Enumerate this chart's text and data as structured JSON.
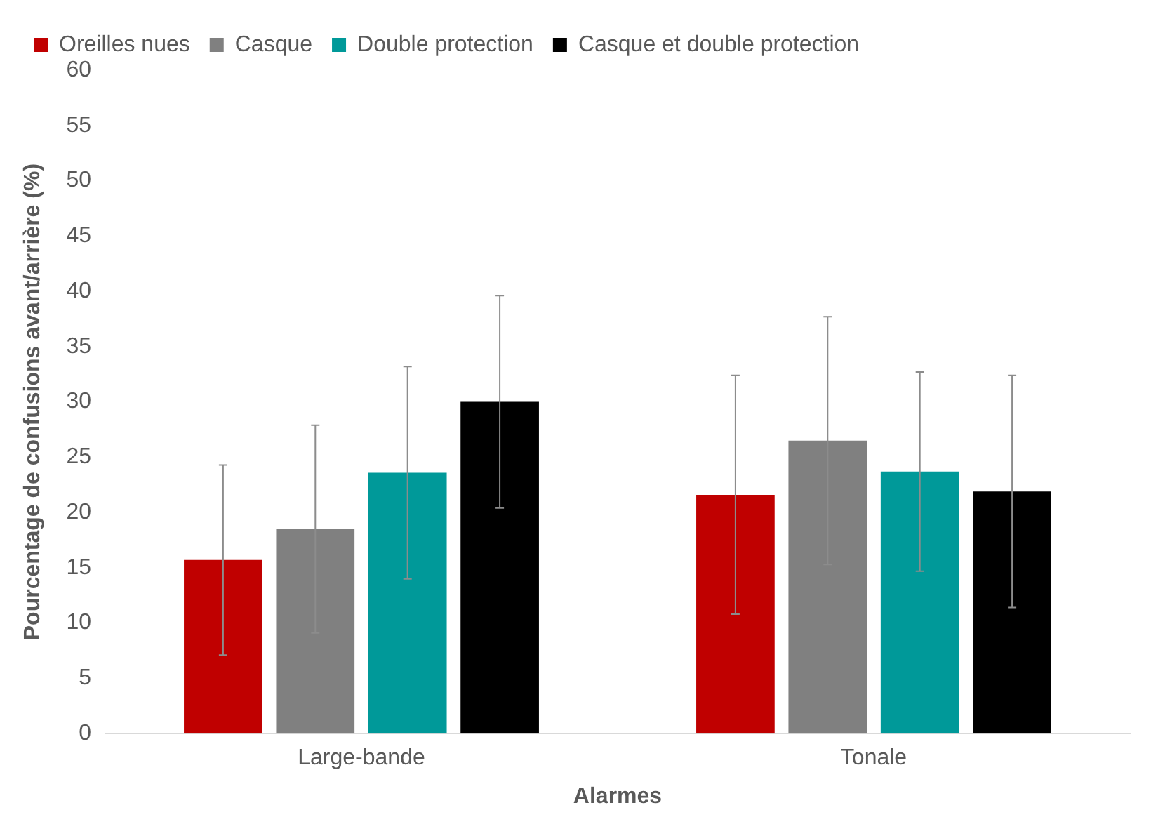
{
  "chart_data": {
    "type": "bar",
    "xlabel": "Alarmes",
    "ylabel": "Pourcentage de confusions avant/arrière (%)",
    "categories": [
      "Large-bande",
      "Tonale"
    ],
    "series": [
      {
        "name": "Oreilles nues",
        "color": "#c00000",
        "values": [
          15.7,
          21.6
        ],
        "errors": [
          8.6,
          10.8
        ]
      },
      {
        "name": "Casque",
        "color": "#808080",
        "values": [
          18.5,
          26.5
        ],
        "errors": [
          9.4,
          11.2
        ]
      },
      {
        "name": "Double protection",
        "color": "#009999",
        "values": [
          23.6,
          23.7
        ],
        "errors": [
          9.6,
          9.0
        ]
      },
      {
        "name": "Casque et double protection",
        "color": "#000000",
        "values": [
          30.0,
          21.9
        ],
        "errors": [
          9.6,
          10.5
        ]
      }
    ],
    "ylim": [
      0,
      60
    ],
    "yticks": [
      0,
      5,
      10,
      15,
      20,
      25,
      30,
      35,
      40,
      45,
      50,
      55,
      60
    ],
    "grid": false,
    "legend": "top"
  }
}
